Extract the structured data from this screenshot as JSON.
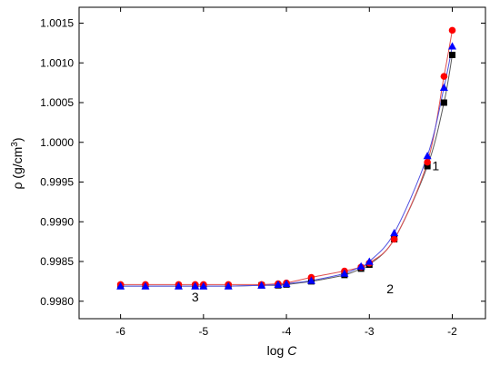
{
  "chart_data": {
    "type": "scatter",
    "title": "",
    "xlabel_main": "log ",
    "xlabel_italic": "C",
    "ylabel_main": "ρ (g/cm",
    "ylabel_sup": "3",
    "ylabel_tail": ")",
    "xlim": [
      -6.5,
      -1.6
    ],
    "ylim": [
      0.99778,
      1.0017
    ],
    "xticks": [
      -6,
      -5,
      -4,
      -3,
      -2
    ],
    "xtick_labels": [
      "-6",
      "-5",
      "-4",
      "-3",
      "-2"
    ],
    "yticks": [
      0.998,
      0.9985,
      0.999,
      0.9995,
      1.0,
      1.0005,
      1.001,
      1.0015
    ],
    "ytick_labels": [
      "0.9980",
      "0.9985",
      "0.9990",
      "0.9995",
      "1.0000",
      "1.0005",
      "1.0010",
      "1.0015"
    ],
    "grid": false,
    "legend": "none",
    "series": [
      {
        "marker": "square",
        "color": "#000000",
        "line_color": "#5a5a5a",
        "x": [
          -6,
          -5.7,
          -5.3,
          -5.1,
          -5,
          -4.7,
          -4.3,
          -4.1,
          -4,
          -3.7,
          -3.3,
          -3.1,
          -3,
          -2.7,
          -2.3,
          -2.1,
          -2
        ],
        "y": [
          0.99819,
          0.99819,
          0.99819,
          0.99819,
          0.99819,
          0.99819,
          0.9982,
          0.9982,
          0.99821,
          0.99825,
          0.99833,
          0.99841,
          0.99846,
          0.99878,
          0.9997,
          1.0005,
          1.0011
        ]
      },
      {
        "marker": "circle",
        "color": "#ff0000",
        "line_color": "#e05050",
        "x": [
          -6,
          -5.7,
          -5.3,
          -5.1,
          -5,
          -4.7,
          -4.3,
          -4.1,
          -4,
          -3.7,
          -3.3,
          -3.1,
          -3,
          -2.7,
          -2.3,
          -2.1,
          -2
        ],
        "y": [
          0.99821,
          0.99821,
          0.99821,
          0.99821,
          0.99821,
          0.99821,
          0.99821,
          0.99822,
          0.99823,
          0.9983,
          0.99838,
          0.99843,
          0.99848,
          0.99878,
          0.99975,
          1.00083,
          1.00141
        ]
      },
      {
        "marker": "triangle",
        "color": "#0000ff",
        "line_color": "#5050e0",
        "x": [
          -6,
          -5.7,
          -5.3,
          -5.1,
          -5,
          -4.7,
          -4.3,
          -4.1,
          -4,
          -3.7,
          -3.3,
          -3.1,
          -3,
          -2.7,
          -2.3,
          -2.1,
          -2
        ],
        "y": [
          0.99819,
          0.99819,
          0.99819,
          0.99819,
          0.99819,
          0.99819,
          0.9982,
          0.99821,
          0.99822,
          0.99826,
          0.99835,
          0.99844,
          0.9985,
          0.99886,
          0.99983,
          1.00069,
          1.00121
        ]
      }
    ],
    "annotations": [
      {
        "text": "1",
        "x": -2.2,
        "y": 0.99965
      },
      {
        "text": "2",
        "x": -2.75,
        "y": 0.9981
      },
      {
        "text": "3",
        "x": -5.1,
        "y": 0.998
      }
    ]
  }
}
